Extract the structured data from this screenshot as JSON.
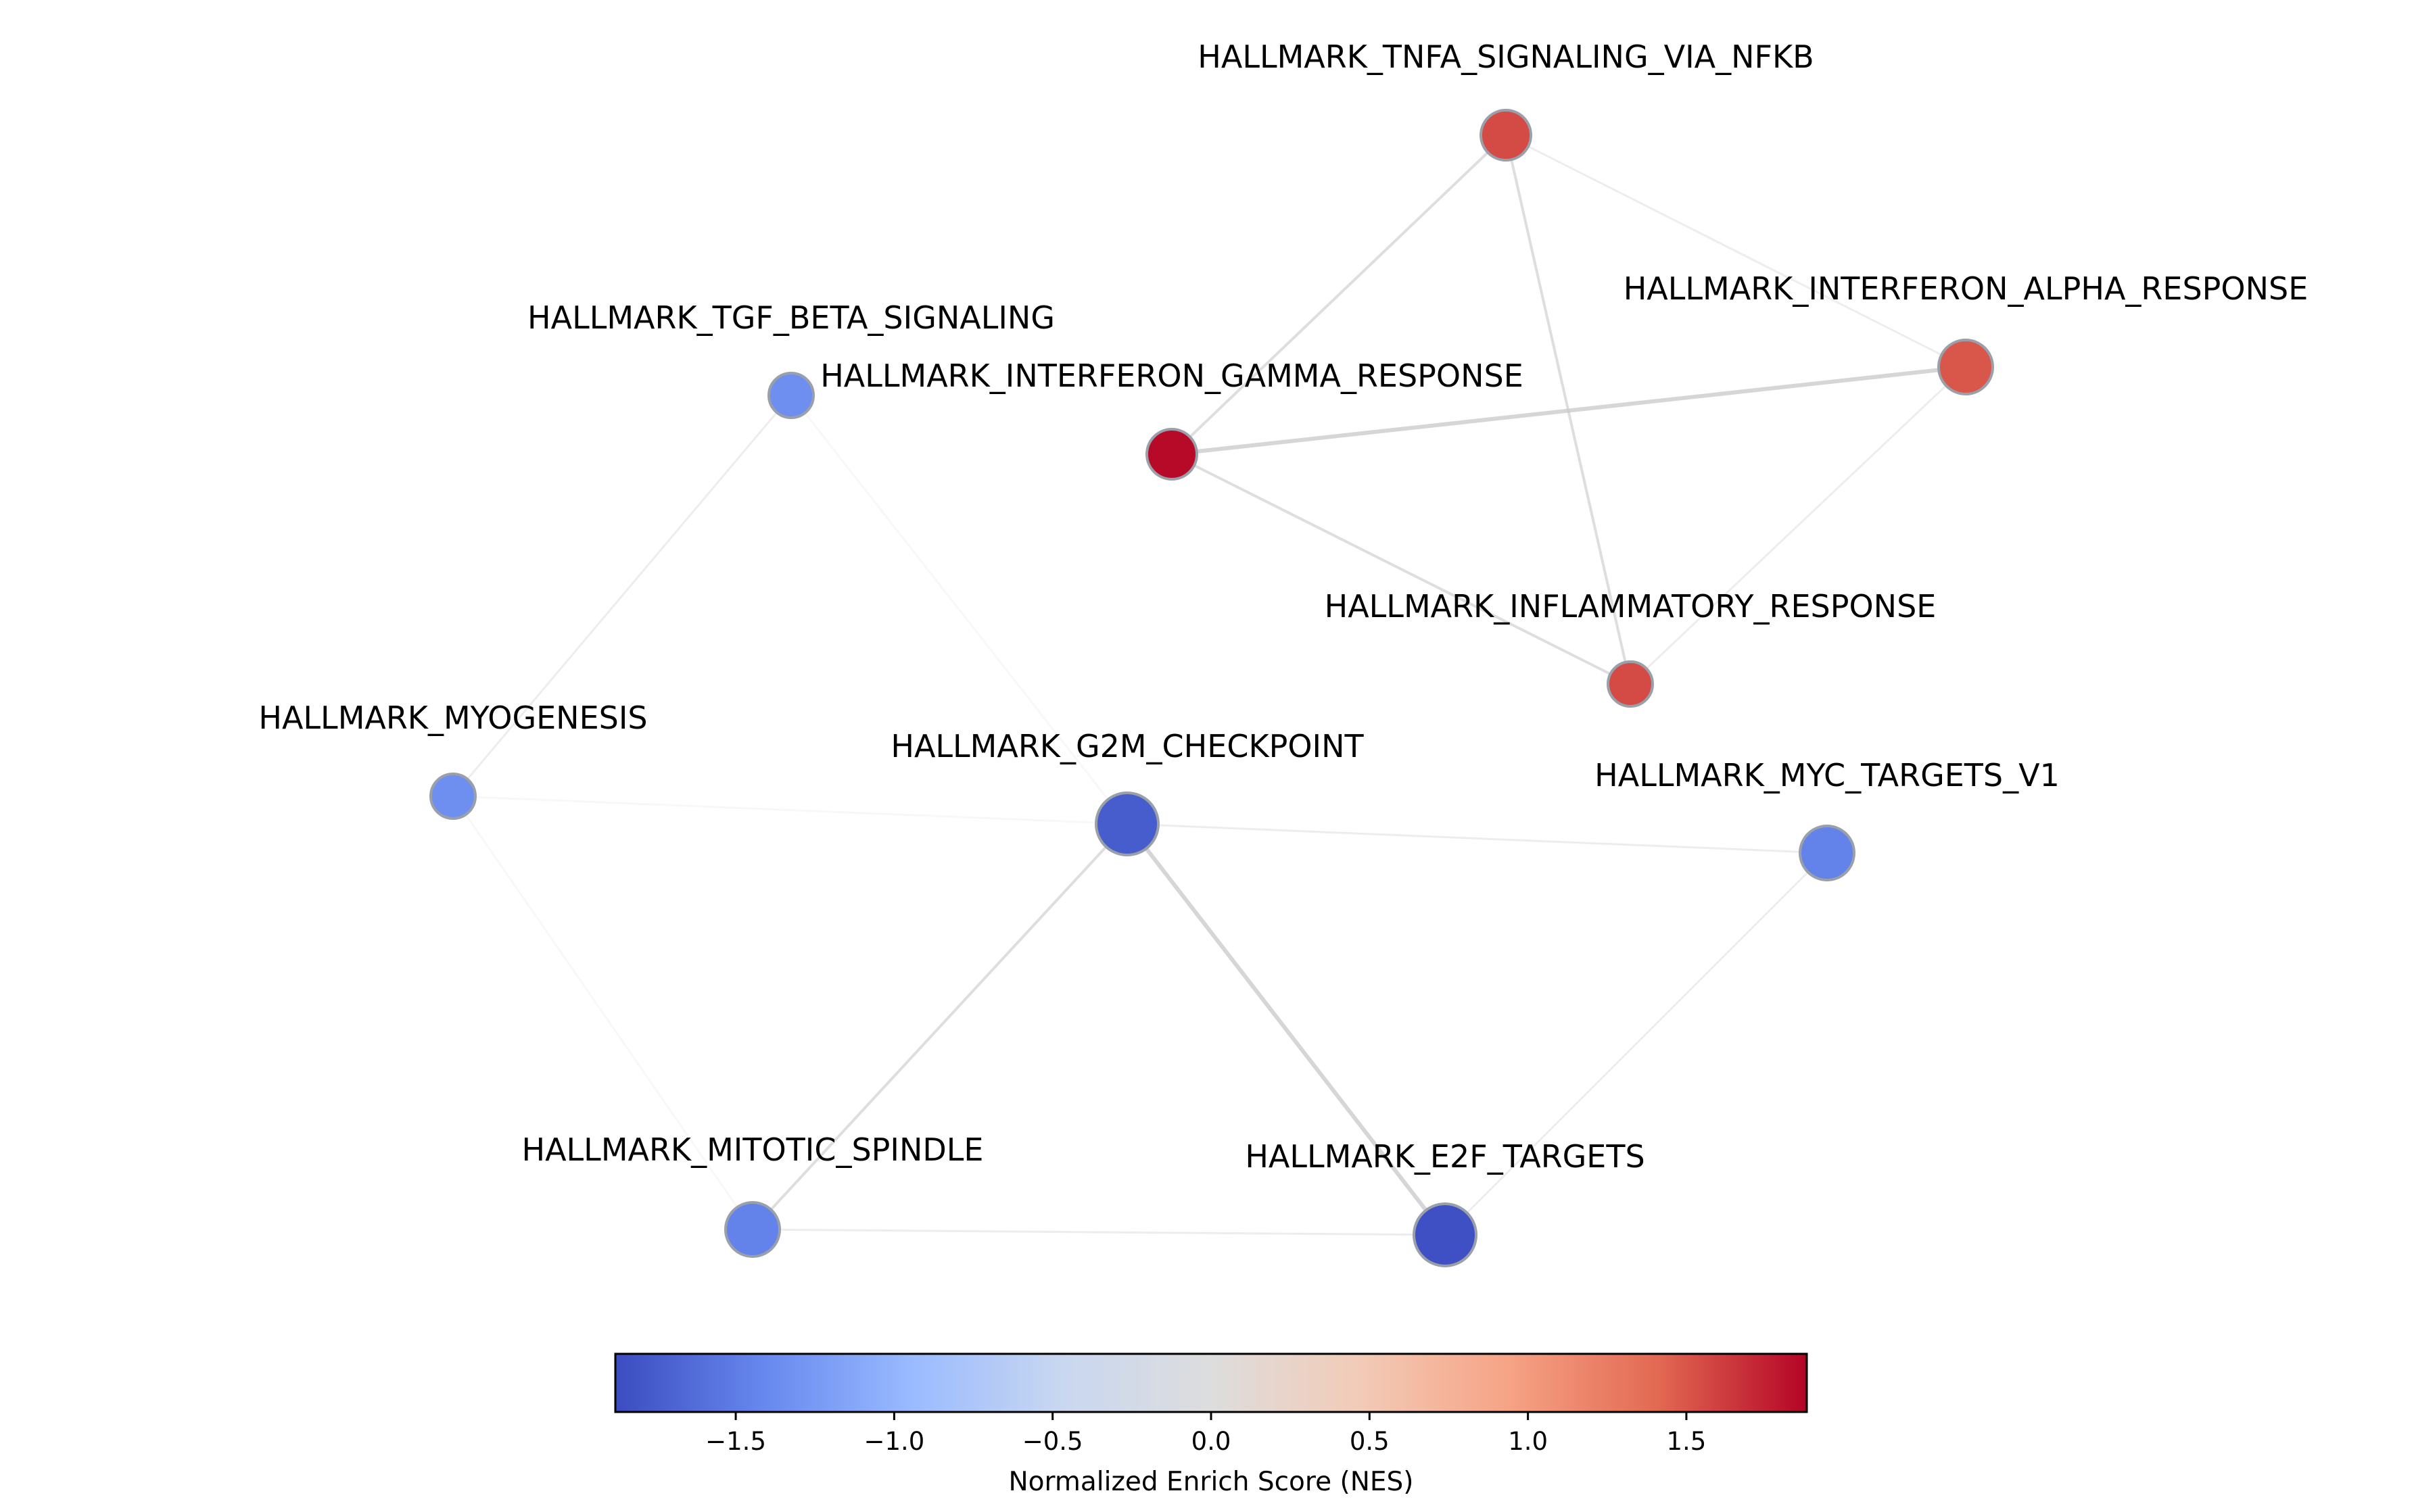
{
  "network": {
    "nodes": [
      {
        "id": "tnfa",
        "label": "HALLMARK_TNFA_SIGNALING_VIA_NFKB",
        "nes": 1.55,
        "size": "medium"
      },
      {
        "id": "ifna",
        "label": "HALLMARK_INTERFERON_ALPHA_RESPONSE",
        "nes": 1.5,
        "size": "large"
      },
      {
        "id": "tgfb",
        "label": "HALLMARK_TGF_BETA_SIGNALING",
        "nes": -1.35,
        "size": "small"
      },
      {
        "id": "ifng",
        "label": "HALLMARK_INTERFERON_GAMMA_RESPONSE",
        "nes": 1.85,
        "size": "medium"
      },
      {
        "id": "inflam",
        "label": "HALLMARK_INFLAMMATORY_RESPONSE",
        "nes": 1.55,
        "size": "small"
      },
      {
        "id": "myog",
        "label": "HALLMARK_MYOGENESIS",
        "nes": -1.35,
        "size": "small"
      },
      {
        "id": "g2m",
        "label": "HALLMARK_G2M_CHECKPOINT",
        "nes": -1.75,
        "size": "xlarge"
      },
      {
        "id": "myc",
        "label": "HALLMARK_MYC_TARGETS_V1",
        "nes": -1.45,
        "size": "large"
      },
      {
        "id": "mitotic",
        "label": "HALLMARK_MITOTIC_SPINDLE",
        "nes": -1.45,
        "size": "large"
      },
      {
        "id": "e2f",
        "label": "HALLMARK_E2F_TARGETS",
        "nes": -1.85,
        "size": "xlarge"
      }
    ],
    "edges": [
      {
        "source": "tnfa",
        "target": "ifng",
        "weight": "medium"
      },
      {
        "source": "tnfa",
        "target": "inflam",
        "weight": "medium"
      },
      {
        "source": "tnfa",
        "target": "ifna",
        "weight": "faint"
      },
      {
        "source": "ifng",
        "target": "ifna",
        "weight": "strong"
      },
      {
        "source": "ifng",
        "target": "inflam",
        "weight": "medium"
      },
      {
        "source": "ifna",
        "target": "inflam",
        "weight": "faint"
      },
      {
        "source": "tgfb",
        "target": "myog",
        "weight": "faint"
      },
      {
        "source": "tgfb",
        "target": "g2m",
        "weight": "very-faint"
      },
      {
        "source": "myog",
        "target": "mitotic",
        "weight": "very-faint"
      },
      {
        "source": "myog",
        "target": "g2m",
        "weight": "very-faint"
      },
      {
        "source": "g2m",
        "target": "myc",
        "weight": "faint"
      },
      {
        "source": "g2m",
        "target": "mitotic",
        "weight": "medium"
      },
      {
        "source": "g2m",
        "target": "e2f",
        "weight": "strong"
      },
      {
        "source": "mitotic",
        "target": "e2f",
        "weight": "faint"
      },
      {
        "source": "myc",
        "target": "e2f",
        "weight": "faint"
      }
    ]
  },
  "colorbar": {
    "label": "Normalized Enrich Score (NES)",
    "min": -1.88,
    "max": 1.88,
    "colormap": "coolwarm",
    "ticks": [
      {
        "value": -1.5,
        "label": "−1.5"
      },
      {
        "value": -1.0,
        "label": "−1.0"
      },
      {
        "value": -0.5,
        "label": "−0.5"
      },
      {
        "value": 0.0,
        "label": "0.0"
      },
      {
        "value": 0.5,
        "label": "0.5"
      },
      {
        "value": 1.0,
        "label": "1.0"
      },
      {
        "value": 1.5,
        "label": "1.5"
      }
    ]
  },
  "colors": {
    "edge": "#c8c8cc",
    "node_stroke": "#9aa0aa",
    "coolwarm_stops": [
      "#3b4cc0",
      "#6788ee",
      "#9abbff",
      "#c9d7f0",
      "#dddddd",
      "#f2cbb7",
      "#f6a385",
      "#e26952",
      "#b40426"
    ]
  }
}
